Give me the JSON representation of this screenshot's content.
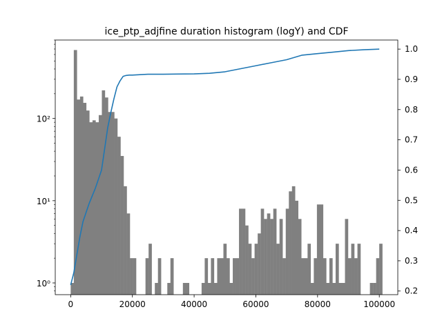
{
  "chart_data": {
    "type": "bar",
    "title": "ice_ptp_adjfine duration histogram (logY) and CDF",
    "xlabel": "",
    "ylabel": "",
    "y2label": "",
    "grid": false,
    "legend": "none",
    "xlim": [
      -5000,
      106000
    ],
    "ylim_log": [
      0.72,
      900
    ],
    "y_scale": "log",
    "y2lim": [
      0.188,
      1.03
    ],
    "x_ticks": [
      0,
      20000,
      40000,
      60000,
      80000,
      100000
    ],
    "x_tick_labels": [
      "0",
      "20000",
      "40000",
      "60000",
      "80000",
      "100000"
    ],
    "y_ticks": [
      1,
      10,
      100
    ],
    "y_tick_labels": [
      "10⁰",
      "10¹",
      "10²"
    ],
    "y2_ticks": [
      0.2,
      0.3,
      0.4,
      0.5,
      0.6,
      0.7,
      0.8,
      0.9,
      1.0
    ],
    "y2_tick_labels": [
      "0.2",
      "0.3",
      "0.4",
      "0.5",
      "0.6",
      "0.7",
      "0.8",
      "0.9",
      "1.0"
    ],
    "bin_width": 1010,
    "bins": [
      {
        "x": 0,
        "count": 1
      },
      {
        "x": 1010,
        "count": 680
      },
      {
        "x": 2020,
        "count": 170
      },
      {
        "x": 3030,
        "count": 185
      },
      {
        "x": 4040,
        "count": 155
      },
      {
        "x": 5050,
        "count": 125
      },
      {
        "x": 6060,
        "count": 90
      },
      {
        "x": 7070,
        "count": 95
      },
      {
        "x": 8080,
        "count": 90
      },
      {
        "x": 9090,
        "count": 110
      },
      {
        "x": 10100,
        "count": 220
      },
      {
        "x": 11110,
        "count": 180
      },
      {
        "x": 12120,
        "count": 120
      },
      {
        "x": 13130,
        "count": 120
      },
      {
        "x": 14140,
        "count": 100
      },
      {
        "x": 15150,
        "count": 60
      },
      {
        "x": 16160,
        "count": 35
      },
      {
        "x": 17170,
        "count": 15
      },
      {
        "x": 18180,
        "count": 7
      },
      {
        "x": 19190,
        "count": 2
      },
      {
        "x": 20200,
        "count": 2
      },
      {
        "x": 24240,
        "count": 2
      },
      {
        "x": 25250,
        "count": 3
      },
      {
        "x": 27270,
        "count": 1
      },
      {
        "x": 28280,
        "count": 2
      },
      {
        "x": 31310,
        "count": 1
      },
      {
        "x": 32320,
        "count": 2
      },
      {
        "x": 36360,
        "count": 1
      },
      {
        "x": 37370,
        "count": 1
      },
      {
        "x": 42420,
        "count": 1
      },
      {
        "x": 43430,
        "count": 2
      },
      {
        "x": 44440,
        "count": 1
      },
      {
        "x": 45450,
        "count": 2
      },
      {
        "x": 46460,
        "count": 1
      },
      {
        "x": 47470,
        "count": 2
      },
      {
        "x": 48480,
        "count": 2
      },
      {
        "x": 49490,
        "count": 3
      },
      {
        "x": 50500,
        "count": 2
      },
      {
        "x": 51510,
        "count": 1
      },
      {
        "x": 52520,
        "count": 2
      },
      {
        "x": 53530,
        "count": 2
      },
      {
        "x": 54540,
        "count": 8
      },
      {
        "x": 55550,
        "count": 8
      },
      {
        "x": 56560,
        "count": 5
      },
      {
        "x": 57570,
        "count": 3
      },
      {
        "x": 58580,
        "count": 2
      },
      {
        "x": 59590,
        "count": 3
      },
      {
        "x": 60600,
        "count": 4
      },
      {
        "x": 61610,
        "count": 8
      },
      {
        "x": 62620,
        "count": 6
      },
      {
        "x": 63630,
        "count": 7
      },
      {
        "x": 64640,
        "count": 6
      },
      {
        "x": 65650,
        "count": 8
      },
      {
        "x": 66660,
        "count": 3
      },
      {
        "x": 67670,
        "count": 6
      },
      {
        "x": 68680,
        "count": 2
      },
      {
        "x": 69690,
        "count": 8
      },
      {
        "x": 70700,
        "count": 13
      },
      {
        "x": 71710,
        "count": 15
      },
      {
        "x": 72720,
        "count": 10
      },
      {
        "x": 73730,
        "count": 6
      },
      {
        "x": 74740,
        "count": 2
      },
      {
        "x": 75750,
        "count": 2
      },
      {
        "x": 76760,
        "count": 3
      },
      {
        "x": 77770,
        "count": 1
      },
      {
        "x": 78780,
        "count": 2
      },
      {
        "x": 79790,
        "count": 9
      },
      {
        "x": 80800,
        "count": 9
      },
      {
        "x": 81810,
        "count": 2
      },
      {
        "x": 82820,
        "count": 1
      },
      {
        "x": 83830,
        "count": 2
      },
      {
        "x": 84840,
        "count": 1
      },
      {
        "x": 85850,
        "count": 3
      },
      {
        "x": 86860,
        "count": 1
      },
      {
        "x": 87870,
        "count": 1
      },
      {
        "x": 88880,
        "count": 6
      },
      {
        "x": 89890,
        "count": 2
      },
      {
        "x": 90900,
        "count": 3
      },
      {
        "x": 91910,
        "count": 2
      },
      {
        "x": 92920,
        "count": 3
      },
      {
        "x": 96960,
        "count": 1
      },
      {
        "x": 97970,
        "count": 1
      },
      {
        "x": 98980,
        "count": 2
      },
      {
        "x": 99990,
        "count": 3
      }
    ],
    "cdf": {
      "x": [
        0,
        1000,
        2000,
        3000,
        4000,
        5000,
        6000,
        7000,
        8000,
        9000,
        10000,
        11000,
        12000,
        13000,
        14000,
        15000,
        16000,
        17000,
        18000,
        19000,
        20000,
        25000,
        30000,
        40000,
        45000,
        50000,
        55000,
        60000,
        65000,
        70000,
        75000,
        80000,
        85000,
        90000,
        95000,
        100000
      ],
      "y": [
        0.22,
        0.26,
        0.32,
        0.38,
        0.43,
        0.46,
        0.49,
        0.515,
        0.54,
        0.57,
        0.6,
        0.67,
        0.74,
        0.79,
        0.835,
        0.875,
        0.895,
        0.91,
        0.913,
        0.914,
        0.914,
        0.917,
        0.917,
        0.918,
        0.92,
        0.925,
        0.935,
        0.945,
        0.955,
        0.965,
        0.98,
        0.985,
        0.99,
        0.995,
        0.998,
        1.0
      ],
      "color": "#1f77b4"
    },
    "bar_color": "#808080"
  }
}
